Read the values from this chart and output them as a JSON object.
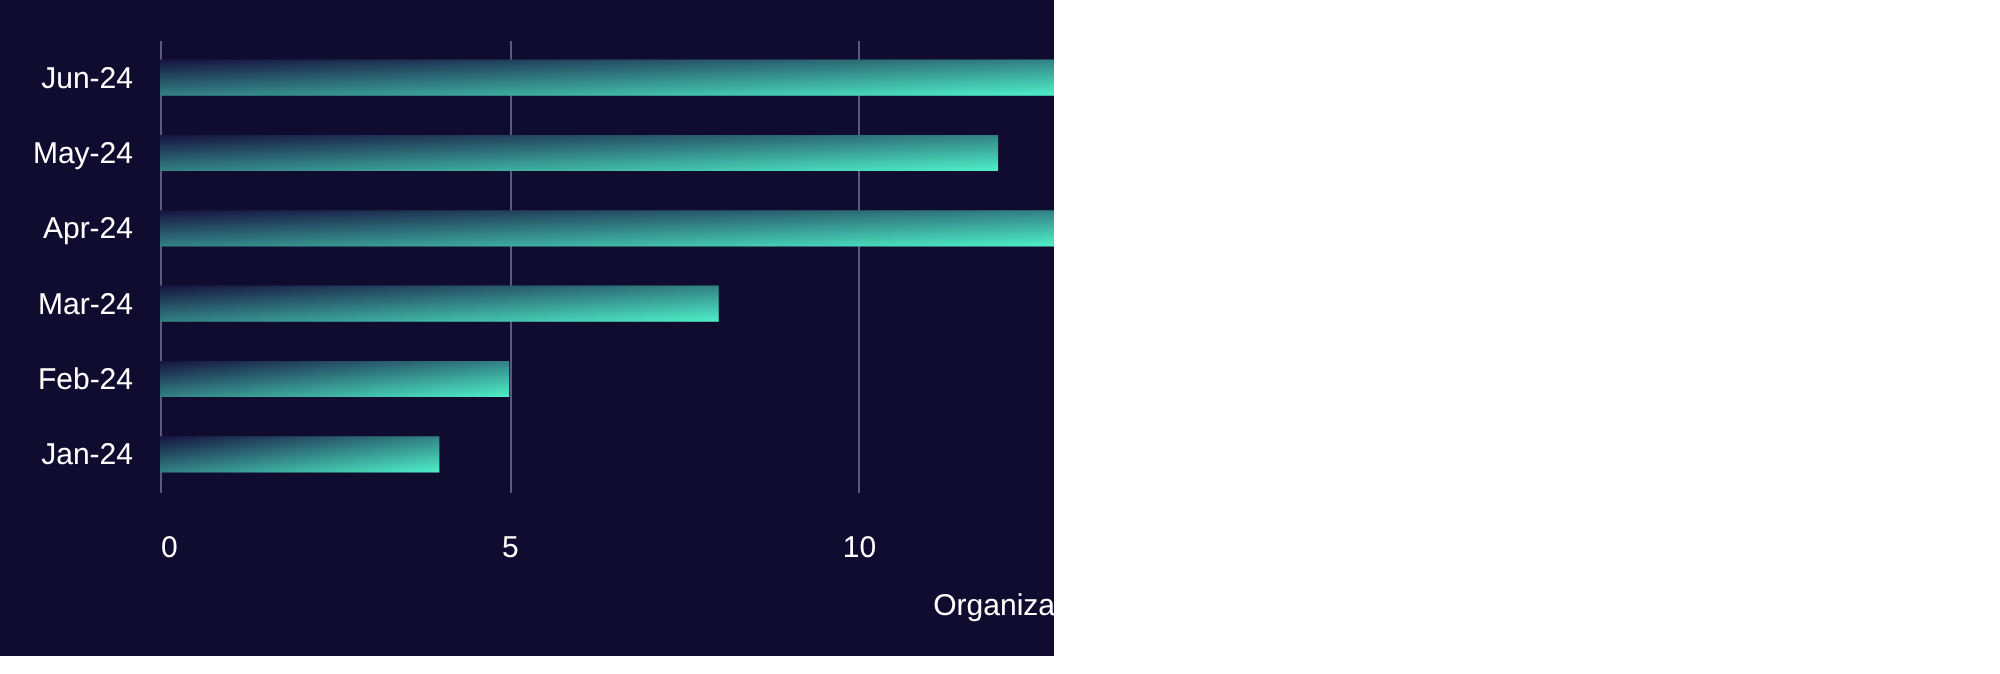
{
  "chart_data": {
    "type": "bar",
    "orientation": "horizontal",
    "xlabel": "Organiza",
    "categories": [
      "Jun-24",
      "May-24",
      "Apr-24",
      "Mar-24",
      "Feb-24",
      "Jan-24"
    ],
    "values": [
      12.8,
      12,
      12.8,
      8,
      5,
      4
    ],
    "color": "#4ef0c8",
    "xlim": [
      0,
      12.8
    ],
    "xticks": [
      0,
      5,
      10
    ],
    "grid": "x"
  }
}
